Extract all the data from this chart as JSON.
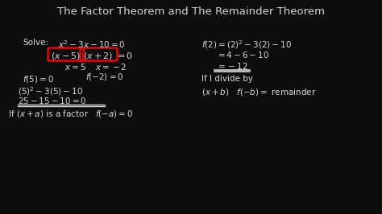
{
  "bg_color": "#0d0d0d",
  "title": "The Factor Theorem and The Remainder Theorem",
  "title_color": "#d8d8d8",
  "title_fontsize": 9.5,
  "text_color": "#d8d8d8",
  "red_color": "#cc1111",
  "figsize": [
    4.74,
    2.66
  ],
  "dpi": 100,
  "xlim": [
    0,
    474
  ],
  "ylim": [
    0,
    266
  ]
}
